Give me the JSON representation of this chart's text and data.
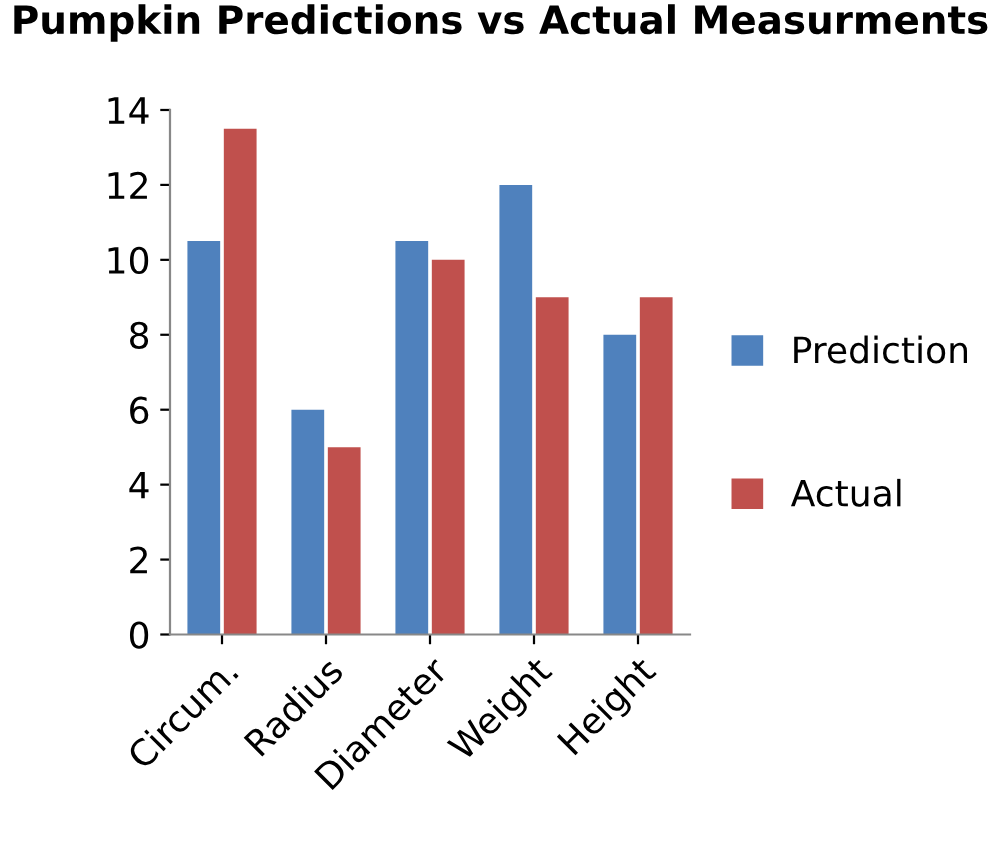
{
  "chart_data": {
    "type": "bar",
    "title": "Pumpkin Predictions vs Actual Measurments",
    "categories": [
      "Circum.",
      "Radius",
      "Diameter",
      "Weight",
      "Height"
    ],
    "series": [
      {
        "name": "Prediction",
        "color": "#4f81bd",
        "values": [
          10.5,
          6,
          10.5,
          12,
          8
        ]
      },
      {
        "name": "Actual",
        "color": "#c0504d",
        "values": [
          13.5,
          5,
          10,
          9,
          9
        ]
      }
    ],
    "ylim": [
      0,
      14
    ],
    "yticks": [
      0,
      2,
      4,
      6,
      8,
      10,
      12,
      14
    ],
    "grid": false,
    "legend": "right"
  }
}
